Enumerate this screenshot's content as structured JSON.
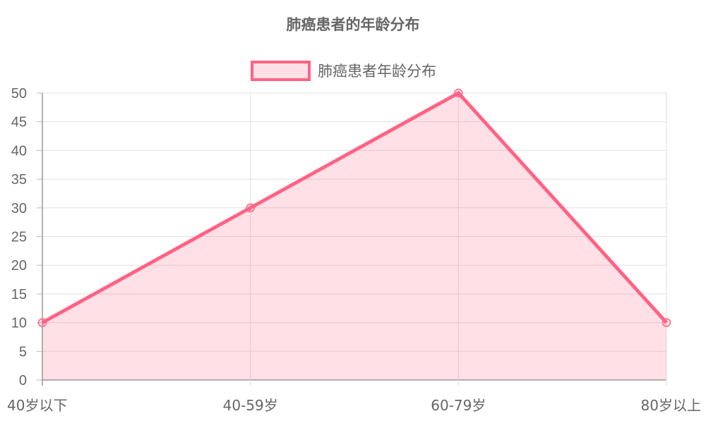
{
  "chart_data": {
    "type": "area",
    "title": "肺癌患者的年龄分布",
    "categories": [
      "40岁以下",
      "40-59岁",
      "60-79岁",
      "80岁以上"
    ],
    "series": [
      {
        "name": "肺癌患者年龄分布",
        "values": [
          10,
          30,
          50,
          10
        ],
        "line_color": "#ff6384",
        "fill_color": "#ff6384"
      }
    ],
    "ylim": [
      0,
      50
    ],
    "y_ticks": [
      0,
      5,
      10,
      15,
      20,
      25,
      30,
      35,
      40,
      45,
      50
    ],
    "grid": true,
    "legend_position": "top"
  }
}
